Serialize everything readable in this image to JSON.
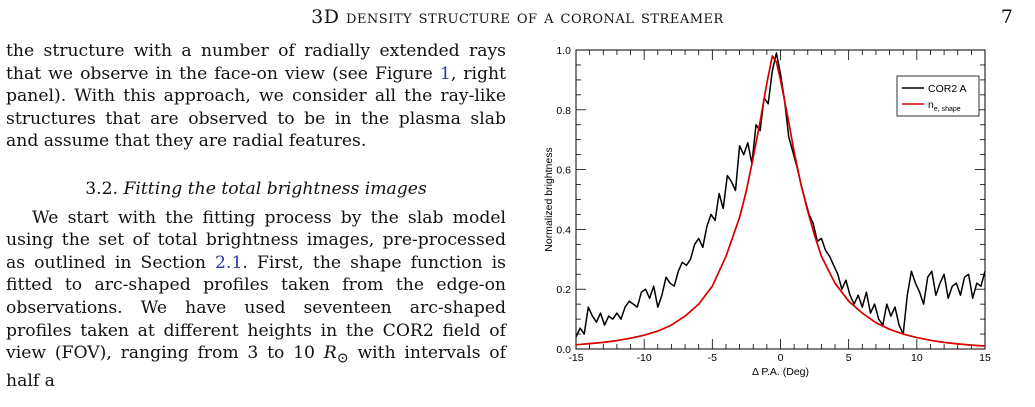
{
  "header": {
    "title": "3D density structure of a coronal streamer",
    "page_number": "7"
  },
  "body_text": {
    "para1": "the structure with a number of radially extended rays that we observe in the face-on view (see Figure ",
    "para1_fig_ref": "1",
    "para1_end": ", right panel). With this approach, we consider all the ray-like structures that are observed to be in the plasma slab and assume that they are radial features.",
    "section_number": "3.2.",
    "section_title": "Fitting the total brightness images",
    "para2_start": "We start with the fitting process by the slab model using the set of total brightness images, pre-processed as outlined in Section ",
    "para2_section_ref": "2.1",
    "para2_end": ". First, the shape function is fitted to arc-shaped profiles taken from the edge-on observations. We have used seventeen arc-shaped profiles taken at different heights in the COR2 field of view (FOV), ranging from 3 to 10 ",
    "para2_unit": "R",
    "para2_unit_sub": "⊙",
    "para2_tail": " with intervals of half a"
  },
  "chart_data": {
    "type": "line",
    "xlabel": "Δ P.A. (Deg)",
    "ylabel": "Normalized brightness",
    "xlim": [
      -15,
      15
    ],
    "ylim": [
      0.0,
      1.0
    ],
    "xticks": [
      -15,
      -10,
      -5,
      0,
      5,
      10,
      15
    ],
    "xtick_labels": [
      "-15",
      "-10",
      "-5",
      "0",
      "5",
      "10",
      "15"
    ],
    "yticks": [
      0.0,
      0.2,
      0.4,
      0.6,
      0.8,
      1.0
    ],
    "ytick_labels": [
      "0.0",
      "0.2",
      "0.4",
      "0.6",
      "0.8",
      "1.0"
    ],
    "grid": false,
    "legend_position": "top-right",
    "series": [
      {
        "name": "COR2 A",
        "color": "#000000",
        "x": [
          -15.0,
          -14.7,
          -14.4,
          -14.1,
          -13.8,
          -13.5,
          -13.2,
          -12.9,
          -12.6,
          -12.3,
          -12.0,
          -11.7,
          -11.4,
          -11.1,
          -10.8,
          -10.5,
          -10.2,
          -9.9,
          -9.6,
          -9.3,
          -9.0,
          -8.7,
          -8.4,
          -8.1,
          -7.8,
          -7.5,
          -7.2,
          -6.9,
          -6.6,
          -6.3,
          -6.0,
          -5.7,
          -5.4,
          -5.1,
          -4.8,
          -4.5,
          -4.2,
          -3.9,
          -3.6,
          -3.3,
          -3.0,
          -2.7,
          -2.4,
          -2.1,
          -1.8,
          -1.5,
          -1.2,
          -0.9,
          -0.6,
          -0.3,
          0.0,
          0.3,
          0.6,
          0.9,
          1.2,
          1.5,
          1.8,
          2.1,
          2.4,
          2.7,
          3.0,
          3.3,
          3.6,
          3.9,
          4.2,
          4.5,
          4.8,
          5.1,
          5.4,
          5.7,
          6.0,
          6.3,
          6.6,
          6.9,
          7.2,
          7.5,
          7.8,
          8.1,
          8.4,
          8.7,
          9.0,
          9.3,
          9.6,
          9.9,
          10.2,
          10.5,
          10.8,
          11.1,
          11.4,
          11.7,
          12.0,
          12.3,
          12.6,
          12.9,
          13.2,
          13.5,
          13.8,
          14.1,
          14.4,
          14.7,
          15.0
        ],
        "y": [
          0.04,
          0.07,
          0.05,
          0.14,
          0.11,
          0.09,
          0.12,
          0.08,
          0.11,
          0.1,
          0.12,
          0.1,
          0.14,
          0.16,
          0.15,
          0.14,
          0.19,
          0.2,
          0.17,
          0.21,
          0.14,
          0.18,
          0.24,
          0.22,
          0.21,
          0.26,
          0.29,
          0.28,
          0.3,
          0.35,
          0.37,
          0.34,
          0.41,
          0.45,
          0.43,
          0.52,
          0.47,
          0.58,
          0.56,
          0.53,
          0.68,
          0.65,
          0.69,
          0.62,
          0.75,
          0.73,
          0.84,
          0.82,
          0.93,
          0.99,
          0.92,
          0.83,
          0.71,
          0.66,
          0.61,
          0.55,
          0.5,
          0.45,
          0.42,
          0.36,
          0.37,
          0.33,
          0.31,
          0.28,
          0.25,
          0.2,
          0.23,
          0.18,
          0.15,
          0.18,
          0.14,
          0.19,
          0.12,
          0.15,
          0.1,
          0.08,
          0.15,
          0.11,
          0.14,
          0.08,
          0.05,
          0.18,
          0.26,
          0.22,
          0.19,
          0.15,
          0.24,
          0.26,
          0.18,
          0.22,
          0.25,
          0.17,
          0.21,
          0.22,
          0.18,
          0.24,
          0.25,
          0.17,
          0.22,
          0.21,
          0.26
        ]
      },
      {
        "name": "n",
        "name_sub": "e, shape",
        "color": "#d40000",
        "x": [
          -15,
          -14,
          -13,
          -12,
          -11,
          -10,
          -9,
          -8,
          -7,
          -6,
          -5,
          -4,
          -3,
          -2.5,
          -2,
          -1.5,
          -1,
          -0.6,
          -0.3,
          0,
          0.3,
          0.6,
          1,
          1.5,
          2,
          2.5,
          3,
          4,
          5,
          6,
          7,
          8,
          9,
          10,
          11,
          12,
          13,
          14,
          15
        ],
        "y": [
          0.014,
          0.018,
          0.022,
          0.028,
          0.036,
          0.046,
          0.06,
          0.08,
          0.11,
          0.15,
          0.21,
          0.31,
          0.44,
          0.53,
          0.64,
          0.76,
          0.89,
          0.98,
          0.96,
          0.9,
          0.83,
          0.76,
          0.66,
          0.55,
          0.46,
          0.38,
          0.31,
          0.22,
          0.16,
          0.12,
          0.088,
          0.066,
          0.05,
          0.038,
          0.029,
          0.022,
          0.017,
          0.013,
          0.01
        ]
      }
    ]
  }
}
